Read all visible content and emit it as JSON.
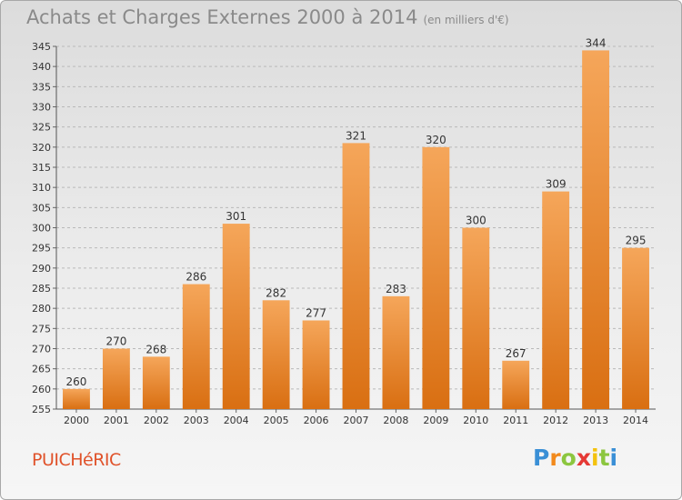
{
  "title": "Achats et Charges Externes 2000 à 2014",
  "subtitle": "(en milliers d'€)",
  "town": "PUICHéRIC",
  "logo": {
    "letters": [
      "P",
      "r",
      "o",
      "x",
      "i",
      "t",
      "i"
    ],
    "colors": [
      "#3a8fd6",
      "#f28a1c",
      "#8cc63f",
      "#e53935",
      "#f4c20d",
      "#8cc63f",
      "#3a8fd6"
    ]
  },
  "colors": {
    "bar_top": "#f5a65a",
    "bar_bottom": "#d96f12",
    "grid": "#b9b9b9"
  },
  "chart_data": {
    "type": "bar",
    "title": "Achats et Charges Externes 2000 à 2014",
    "subtitle": "(en milliers d'€)",
    "categories": [
      "2000",
      "2001",
      "2002",
      "2003",
      "2004",
      "2005",
      "2006",
      "2007",
      "2008",
      "2009",
      "2010",
      "2011",
      "2012",
      "2013",
      "2014"
    ],
    "values": [
      260,
      270,
      268,
      286,
      301,
      282,
      277,
      321,
      283,
      320,
      300,
      267,
      309,
      344,
      295
    ],
    "ylim": [
      255,
      345
    ],
    "yticks": [
      255,
      260,
      265,
      270,
      275,
      280,
      285,
      290,
      295,
      300,
      305,
      310,
      315,
      320,
      325,
      330,
      335,
      340,
      345
    ],
    "grid": true,
    "xlabel": "",
    "ylabel": ""
  }
}
